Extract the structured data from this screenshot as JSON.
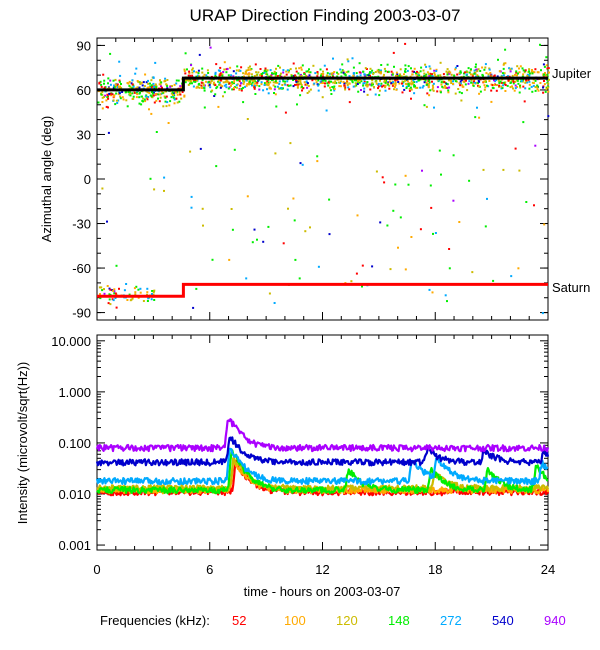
{
  "chart_data": [
    {
      "type": "scatter",
      "title": "URAP Direction Finding  2003-03-07",
      "xlabel": "",
      "ylabel": "Azimuthal angle (deg)",
      "xlim": [
        0,
        24
      ],
      "ylim": [
        -95,
        95
      ],
      "yticks": [
        90,
        60,
        30,
        0,
        -30,
        -60,
        -90
      ],
      "reference_lines": [
        {
          "name": "Jupiter",
          "color": "#000000",
          "segments": [
            [
              0,
              4.6,
              60
            ],
            [
              4.6,
              24,
              68
            ]
          ]
        },
        {
          "name": "Saturn",
          "color": "#ff0000",
          "segments": [
            [
              0,
              4.6,
              -79
            ],
            [
              4.6,
              24,
              -71
            ]
          ]
        }
      ],
      "series": [
        {
          "name": "52",
          "color": "#ff0000"
        },
        {
          "name": "100",
          "color": "#ffaa00"
        },
        {
          "name": "120",
          "color": "#ccbb00"
        },
        {
          "name": "148",
          "color": "#00ee00"
        },
        {
          "name": "272",
          "color": "#00aaff"
        },
        {
          "name": "540",
          "color": "#0000cc"
        },
        {
          "name": "940",
          "color": "#aa00ff"
        }
      ],
      "scatter_clusters": [
        {
          "x_range": [
            0,
            24
          ],
          "y_center": 68,
          "y_spread": 7,
          "note": "dense band near Jupiter"
        },
        {
          "x_range": [
            0,
            3
          ],
          "y_center": -77,
          "y_spread": 6,
          "note": "points near Saturn early in day"
        }
      ]
    },
    {
      "type": "line",
      "title": "",
      "xlabel": "time - hours on 2003-03-07",
      "ylabel": "Intensity (microvolt/sqrt(Hz))",
      "xlim": [
        0,
        24
      ],
      "ylim": [
        0.0008,
        13
      ],
      "yscale": "log",
      "yticks": [
        10,
        1,
        0.1,
        0.01,
        0.001
      ],
      "ytick_labels": [
        "10.000",
        "1.000",
        "0.100",
        "0.010",
        "0.001"
      ],
      "xticks": [
        0,
        6,
        12,
        18,
        24
      ],
      "xtick_labels": [
        "0",
        "6",
        "12",
        "18",
        "24"
      ],
      "series": [
        {
          "name": "940",
          "color": "#aa00ff",
          "base": 0.08,
          "peaks": [
            [
              7.0,
              0.32
            ]
          ]
        },
        {
          "name": "540",
          "color": "#0000cc",
          "base": 0.042,
          "peaks": [
            [
              7.1,
              0.13
            ],
            [
              17.6,
              0.075
            ],
            [
              20.6,
              0.072
            ],
            [
              23.8,
              0.07
            ]
          ]
        },
        {
          "name": "272",
          "color": "#00aaff",
          "base": 0.018,
          "peaks": [
            [
              7.1,
              0.08
            ],
            [
              16.8,
              0.045
            ],
            [
              18.1,
              0.05
            ],
            [
              23.7,
              0.04
            ]
          ]
        },
        {
          "name": "148",
          "color": "#00ee00",
          "base": 0.012,
          "peaks": [
            [
              7.2,
              0.07
            ],
            [
              13.4,
              0.03
            ],
            [
              17.8,
              0.03
            ],
            [
              20.8,
              0.03
            ],
            [
              23.4,
              0.035
            ]
          ]
        },
        {
          "name": "120",
          "color": "#ccbb00",
          "base": 0.013,
          "peaks": [
            [
              7.3,
              0.05
            ],
            [
              18.0,
              0.025
            ]
          ]
        },
        {
          "name": "100",
          "color": "#ffaa00",
          "base": 0.012,
          "peaks": [
            [
              7.3,
              0.045
            ]
          ]
        },
        {
          "name": "52",
          "color": "#ff0000",
          "base": 0.011,
          "peaks": [
            [
              7.4,
              0.04
            ]
          ]
        }
      ]
    }
  ],
  "labels": {
    "jupiter": "Jupiter",
    "saturn": "Saturn",
    "freq_legend_title": "Frequencies (kHz):"
  }
}
